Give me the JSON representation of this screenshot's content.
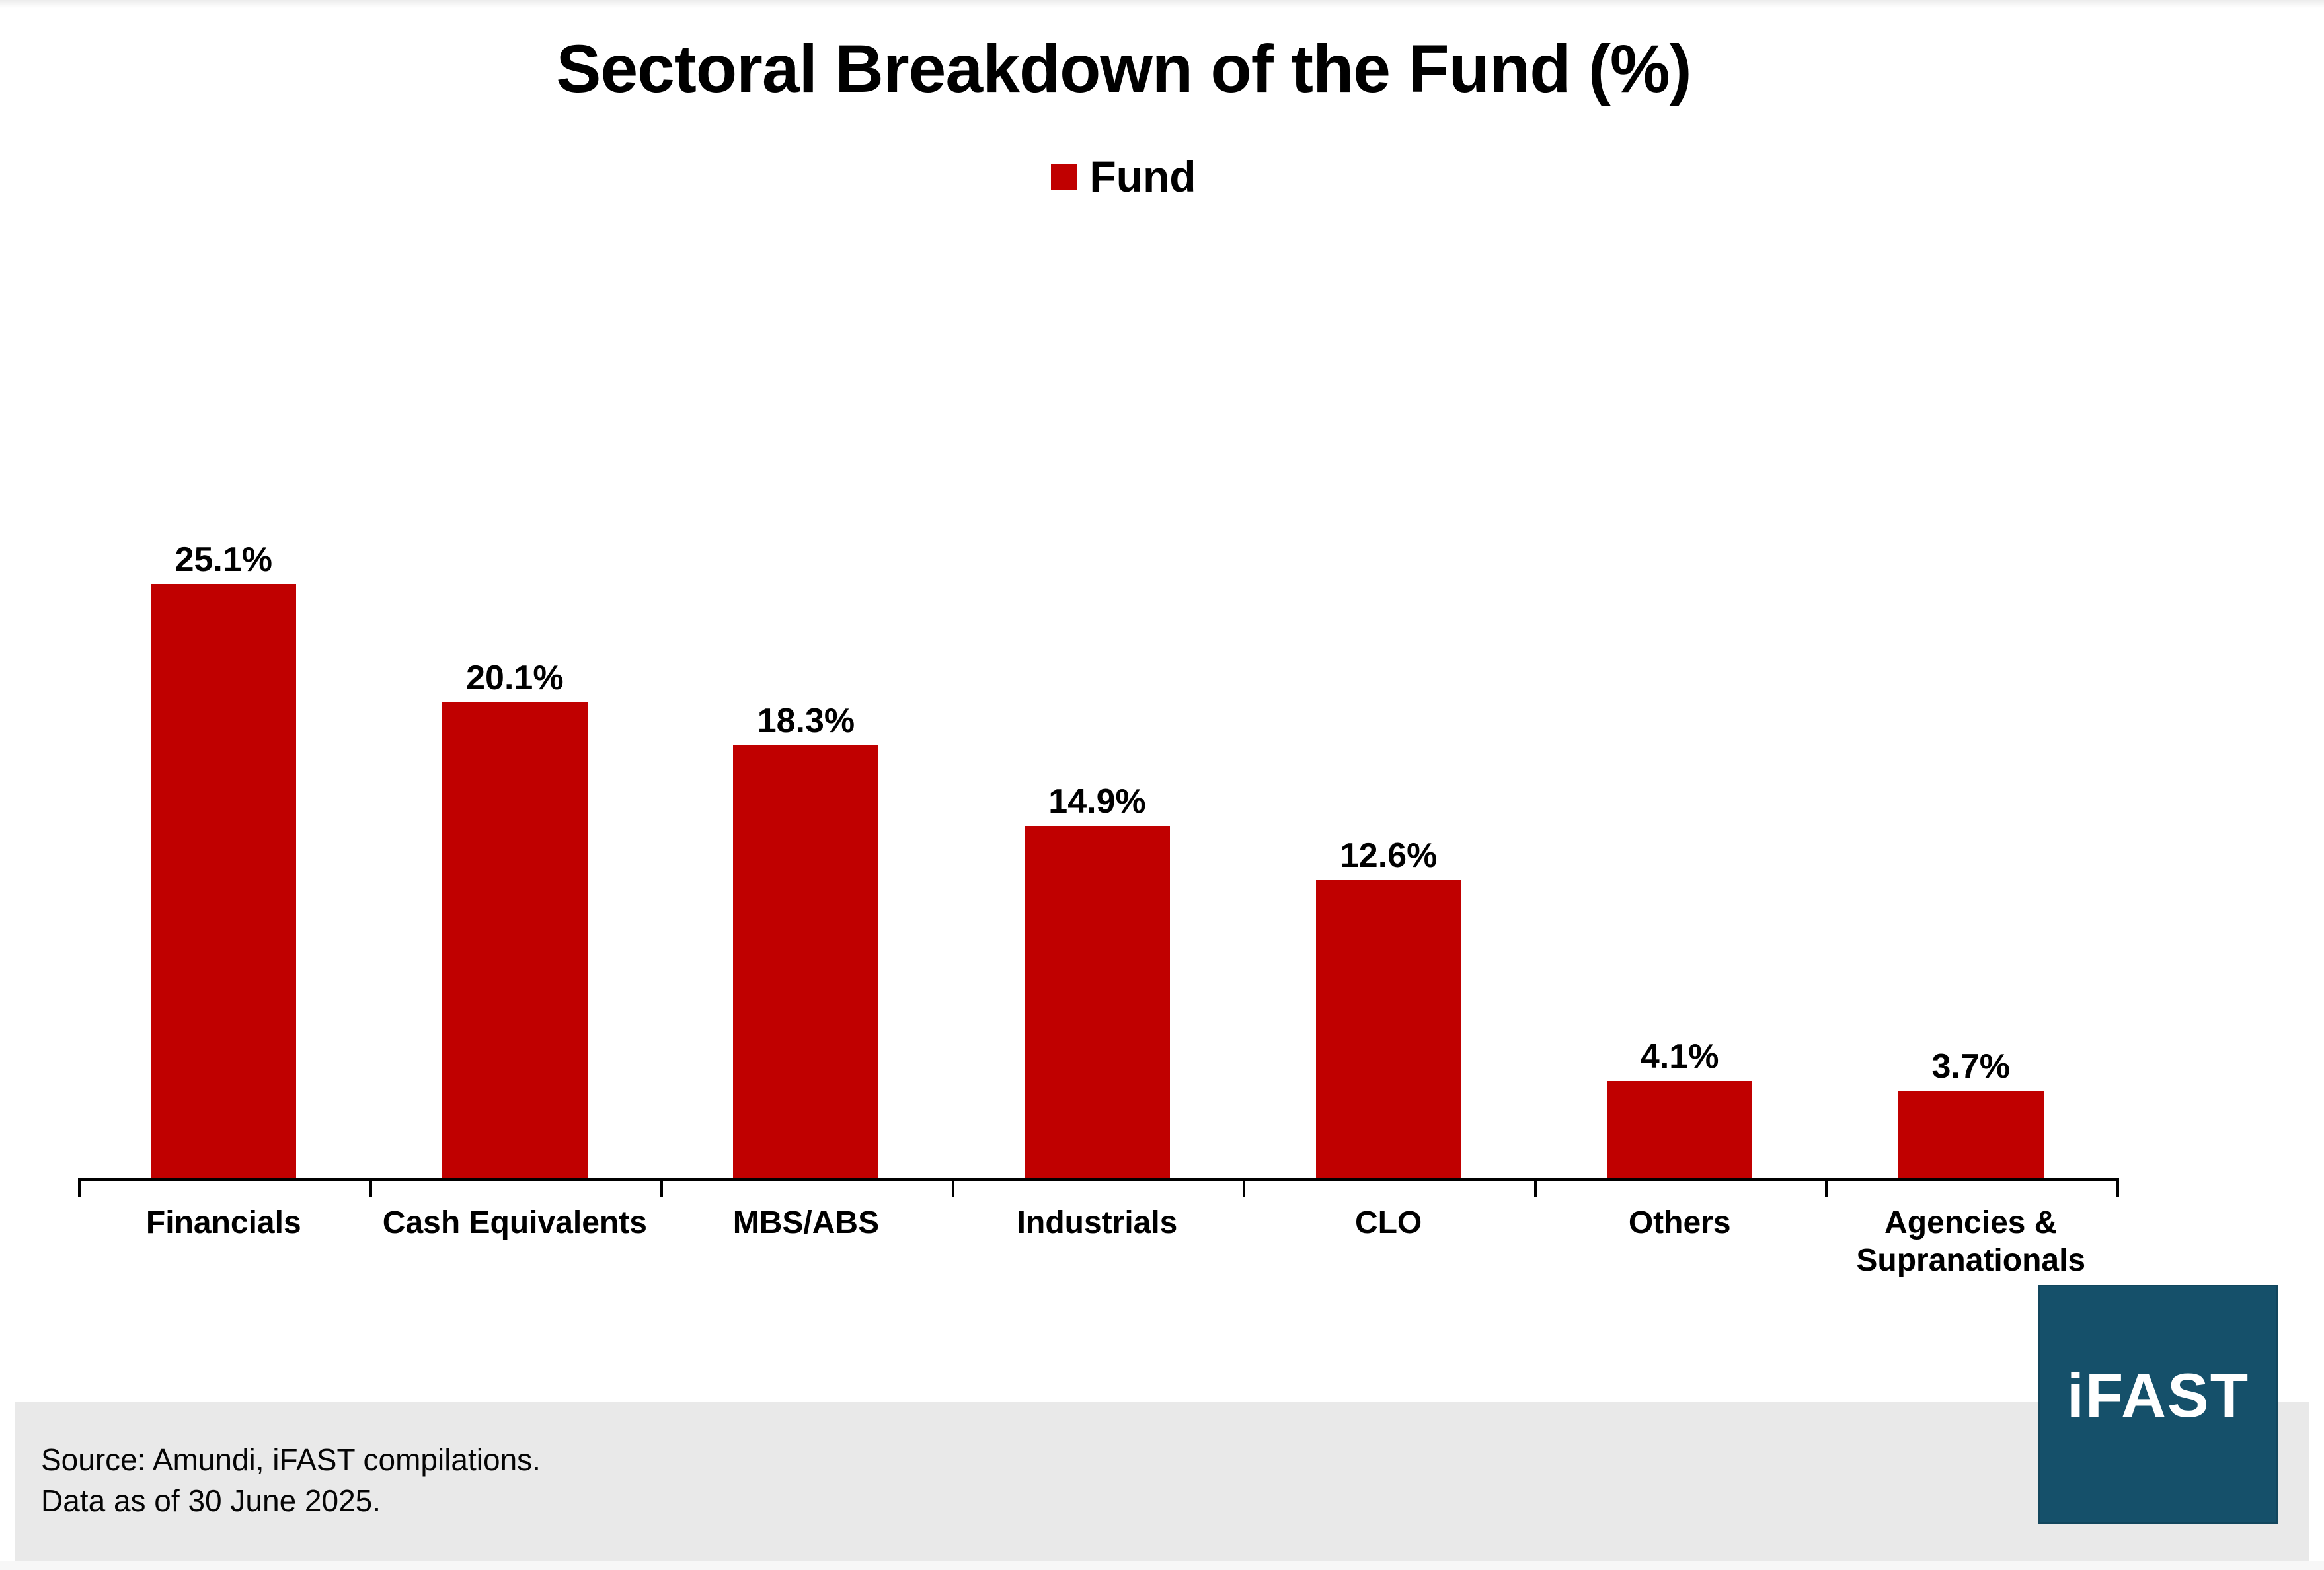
{
  "title": "Sectoral Breakdown of the Fund (%)",
  "legend": {
    "label": "Fund"
  },
  "chart_data": {
    "type": "bar",
    "title": "Sectoral Breakdown of the Fund (%)",
    "series_name": "Fund",
    "categories": [
      "Financials",
      "Cash Equivalents",
      "MBS/ABS",
      "Industrials",
      "CLO",
      "Others",
      "Agencies & Supranationals"
    ],
    "values": [
      25.1,
      20.1,
      18.3,
      14.9,
      12.6,
      4.1,
      3.7
    ],
    "value_labels": [
      "25.1%",
      "20.1%",
      "18.3%",
      "14.9%",
      "12.6%",
      "4.1%",
      "3.7%"
    ],
    "xlabel": "",
    "ylabel": "",
    "ylim": [
      0,
      27
    ],
    "grid": false,
    "legend_position": "top-center",
    "bar_color": "#C00000"
  },
  "footer": {
    "source": "Source: Amundi, iFAST compilations.",
    "data_as_of": "Data as of 30 June 2025."
  },
  "logo": {
    "text": "iFAST"
  },
  "colors": {
    "bar": "#C00000",
    "legend_marker": "#C00000",
    "axis": "#000000",
    "footer_bg": "#E9E9E9",
    "logo_bg": "#15506A",
    "logo_text": "#FFFFFF"
  }
}
